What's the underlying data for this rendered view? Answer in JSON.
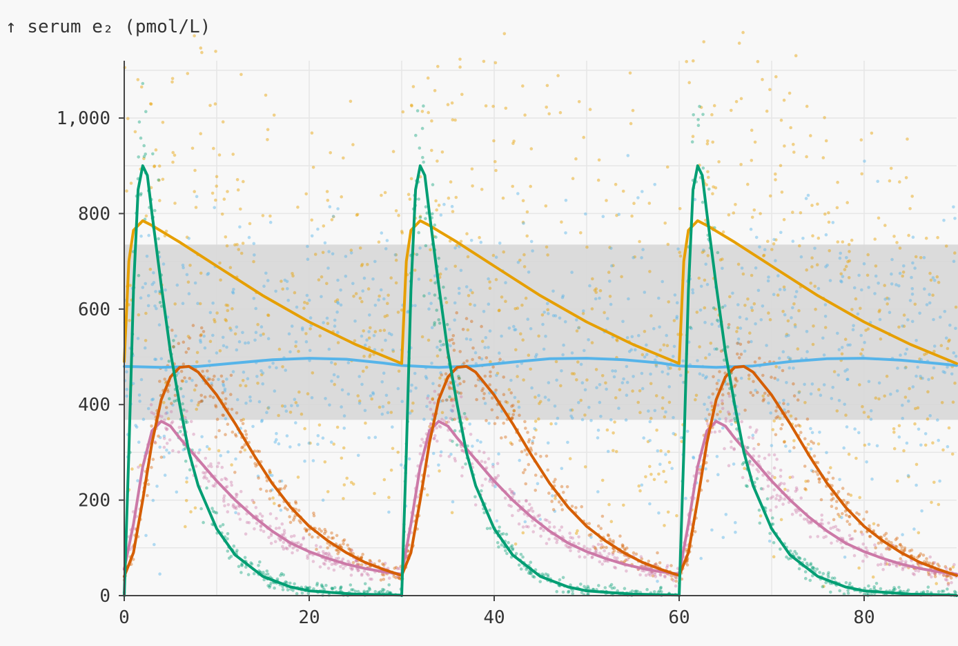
{
  "chart_data": {
    "type": "line",
    "ylabel": "↑ serum e₂ (pmol/L)",
    "xlabel": "",
    "xlim": [
      0,
      90
    ],
    "ylim": [
      0,
      1120
    ],
    "x_ticks": [
      0,
      20,
      40,
      60,
      80
    ],
    "x_tick_labels": [
      "0",
      "20",
      "40",
      "60",
      "80"
    ],
    "y_ticks": [
      0,
      200,
      400,
      600,
      800,
      1000
    ],
    "y_tick_labels": [
      "0",
      "200",
      "400",
      "600",
      "800",
      "1,000"
    ],
    "grid": true,
    "reference_band": {
      "y_from": 368,
      "y_to": 735,
      "color": "#d6d6d6"
    },
    "scatter_noise_visible": true,
    "series": [
      {
        "color": "#e69f00",
        "points": [
          [
            0,
            490
          ],
          [
            0.5,
            700
          ],
          [
            1,
            765
          ],
          [
            2,
            785
          ],
          [
            3,
            775
          ],
          [
            6,
            740
          ],
          [
            10,
            690
          ],
          [
            15,
            628
          ],
          [
            20,
            573
          ],
          [
            25,
            526
          ],
          [
            30,
            486
          ],
          [
            30.5,
            700
          ],
          [
            31,
            765
          ],
          [
            32,
            785
          ],
          [
            33,
            775
          ],
          [
            36,
            740
          ],
          [
            40,
            690
          ],
          [
            45,
            628
          ],
          [
            50,
            573
          ],
          [
            55,
            526
          ],
          [
            60,
            486
          ],
          [
            60.5,
            700
          ],
          [
            61,
            765
          ],
          [
            62,
            785
          ],
          [
            63,
            775
          ],
          [
            66,
            740
          ],
          [
            70,
            690
          ],
          [
            75,
            628
          ],
          [
            80,
            573
          ],
          [
            85,
            526
          ],
          [
            90,
            486
          ]
        ]
      },
      {
        "color": "#56b4e9",
        "points": [
          [
            0,
            480
          ],
          [
            4,
            478
          ],
          [
            8,
            480
          ],
          [
            12,
            487
          ],
          [
            16,
            494
          ],
          [
            20,
            497
          ],
          [
            24,
            495
          ],
          [
            28,
            487
          ],
          [
            30,
            482
          ],
          [
            34,
            478
          ],
          [
            38,
            481
          ],
          [
            42,
            489
          ],
          [
            46,
            496
          ],
          [
            50,
            497
          ],
          [
            54,
            494
          ],
          [
            58,
            487
          ],
          [
            60,
            481
          ],
          [
            64,
            478
          ],
          [
            68,
            481
          ],
          [
            72,
            490
          ],
          [
            76,
            496
          ],
          [
            80,
            497
          ],
          [
            84,
            493
          ],
          [
            88,
            486
          ],
          [
            90,
            482
          ]
        ]
      },
      {
        "color": "#009e73",
        "points": [
          [
            0,
            0
          ],
          [
            0.5,
            300
          ],
          [
            1,
            640
          ],
          [
            1.5,
            850
          ],
          [
            2,
            900
          ],
          [
            2.5,
            880
          ],
          [
            3,
            800
          ],
          [
            4,
            650
          ],
          [
            5,
            510
          ],
          [
            6,
            400
          ],
          [
            7,
            300
          ],
          [
            8,
            230
          ],
          [
            10,
            140
          ],
          [
            12,
            85
          ],
          [
            15,
            40
          ],
          [
            18,
            18
          ],
          [
            20,
            10
          ],
          [
            25,
            3
          ],
          [
            29.9,
            1
          ],
          [
            30,
            0
          ],
          [
            30.5,
            300
          ],
          [
            31,
            640
          ],
          [
            31.5,
            850
          ],
          [
            32,
            900
          ],
          [
            32.5,
            880
          ],
          [
            33,
            800
          ],
          [
            34,
            650
          ],
          [
            35,
            510
          ],
          [
            36,
            400
          ],
          [
            37,
            300
          ],
          [
            38,
            230
          ],
          [
            40,
            140
          ],
          [
            42,
            85
          ],
          [
            45,
            40
          ],
          [
            48,
            18
          ],
          [
            50,
            10
          ],
          [
            55,
            3
          ],
          [
            59.9,
            1
          ],
          [
            60,
            0
          ],
          [
            60.5,
            300
          ],
          [
            61,
            640
          ],
          [
            61.5,
            850
          ],
          [
            62,
            900
          ],
          [
            62.5,
            880
          ],
          [
            63,
            800
          ],
          [
            64,
            650
          ],
          [
            65,
            510
          ],
          [
            66,
            400
          ],
          [
            67,
            300
          ],
          [
            68,
            230
          ],
          [
            70,
            140
          ],
          [
            72,
            85
          ],
          [
            75,
            40
          ],
          [
            78,
            18
          ],
          [
            80,
            10
          ],
          [
            85,
            3
          ],
          [
            89.9,
            1
          ],
          [
            90,
            0
          ]
        ]
      },
      {
        "color": "#d55e00",
        "points": [
          [
            0,
            40
          ],
          [
            1,
            90
          ],
          [
            2,
            200
          ],
          [
            3,
            320
          ],
          [
            4,
            410
          ],
          [
            5,
            458
          ],
          [
            6,
            478
          ],
          [
            7,
            480
          ],
          [
            8,
            468
          ],
          [
            10,
            420
          ],
          [
            12,
            360
          ],
          [
            14,
            295
          ],
          [
            16,
            235
          ],
          [
            18,
            185
          ],
          [
            20,
            145
          ],
          [
            22,
            115
          ],
          [
            24,
            90
          ],
          [
            26,
            70
          ],
          [
            28,
            55
          ],
          [
            30,
            42
          ],
          [
            31,
            90
          ],
          [
            32,
            200
          ],
          [
            33,
            320
          ],
          [
            34,
            410
          ],
          [
            35,
            458
          ],
          [
            36,
            478
          ],
          [
            37,
            480
          ],
          [
            38,
            468
          ],
          [
            40,
            420
          ],
          [
            42,
            360
          ],
          [
            44,
            295
          ],
          [
            46,
            235
          ],
          [
            48,
            185
          ],
          [
            50,
            145
          ],
          [
            52,
            115
          ],
          [
            54,
            90
          ],
          [
            56,
            70
          ],
          [
            58,
            55
          ],
          [
            60,
            42
          ],
          [
            61,
            90
          ],
          [
            62,
            200
          ],
          [
            63,
            320
          ],
          [
            64,
            410
          ],
          [
            65,
            458
          ],
          [
            66,
            478
          ],
          [
            67,
            480
          ],
          [
            68,
            468
          ],
          [
            70,
            420
          ],
          [
            72,
            360
          ],
          [
            74,
            295
          ],
          [
            76,
            235
          ],
          [
            78,
            185
          ],
          [
            80,
            145
          ],
          [
            82,
            115
          ],
          [
            84,
            90
          ],
          [
            86,
            70
          ],
          [
            88,
            55
          ],
          [
            90,
            42
          ]
        ]
      },
      {
        "color": "#cc79a7",
        "points": [
          [
            0,
            55
          ],
          [
            1,
            150
          ],
          [
            2,
            270
          ],
          [
            3,
            345
          ],
          [
            4,
            365
          ],
          [
            5,
            355
          ],
          [
            6,
            330
          ],
          [
            8,
            285
          ],
          [
            10,
            240
          ],
          [
            12,
            200
          ],
          [
            14,
            165
          ],
          [
            16,
            135
          ],
          [
            18,
            110
          ],
          [
            20,
            92
          ],
          [
            22,
            78
          ],
          [
            24,
            66
          ],
          [
            26,
            57
          ],
          [
            28,
            50
          ],
          [
            30,
            45
          ],
          [
            31,
            150
          ],
          [
            32,
            270
          ],
          [
            33,
            345
          ],
          [
            34,
            365
          ],
          [
            35,
            355
          ],
          [
            36,
            330
          ],
          [
            38,
            285
          ],
          [
            40,
            240
          ],
          [
            42,
            200
          ],
          [
            44,
            165
          ],
          [
            46,
            135
          ],
          [
            48,
            110
          ],
          [
            50,
            92
          ],
          [
            52,
            78
          ],
          [
            54,
            66
          ],
          [
            56,
            57
          ],
          [
            58,
            50
          ],
          [
            60,
            45
          ],
          [
            61,
            150
          ],
          [
            62,
            270
          ],
          [
            63,
            345
          ],
          [
            64,
            365
          ],
          [
            65,
            355
          ],
          [
            66,
            330
          ],
          [
            68,
            285
          ],
          [
            70,
            240
          ],
          [
            72,
            200
          ],
          [
            74,
            165
          ],
          [
            76,
            135
          ],
          [
            78,
            110
          ],
          [
            80,
            92
          ],
          [
            82,
            78
          ],
          [
            84,
            66
          ],
          [
            86,
            57
          ],
          [
            88,
            50
          ],
          [
            90,
            45
          ]
        ]
      }
    ]
  }
}
